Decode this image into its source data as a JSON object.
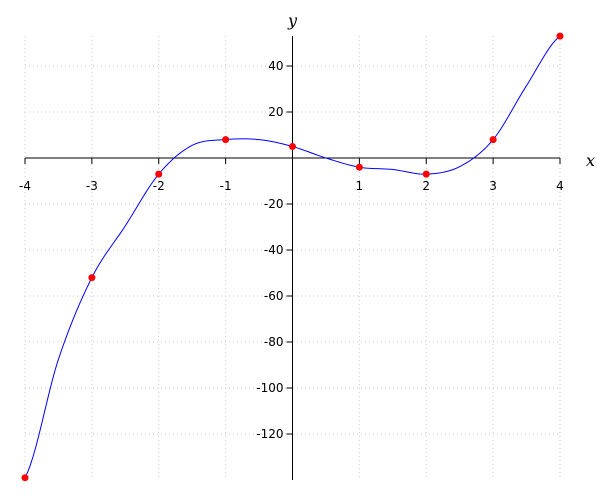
{
  "chart_data": {
    "type": "line",
    "title": "",
    "xlabel": "x",
    "ylabel": "y",
    "xlim": [
      -4,
      4
    ],
    "ylim": [
      -139,
      53
    ],
    "grid": true,
    "x_ticks": [
      -4,
      -3,
      -2,
      -1,
      1,
      2,
      3,
      4
    ],
    "x_tick_labels": [
      "-4",
      "-3",
      "-2",
      "-1",
      "1",
      "2",
      "3",
      "4"
    ],
    "y_ticks": [
      40,
      20,
      -20,
      -40,
      -60,
      -80,
      -100,
      -120
    ],
    "y_tick_labels": [
      "40",
      "20",
      "-20",
      "-40",
      "-60",
      "-80",
      "-100",
      "-120"
    ],
    "curve": {
      "color": "#0000ff",
      "x": [
        -4,
        -3.5,
        -3,
        -2.5,
        -2,
        -1.5,
        -1,
        -0.5,
        0,
        0.5,
        1,
        1.5,
        2,
        2.5,
        3,
        3.5,
        4
      ],
      "y": [
        -139,
        -87.5,
        -52,
        -29.5,
        -7,
        5.5,
        8,
        8,
        5,
        0,
        -4,
        -5,
        -7,
        -3.75,
        8,
        31.5,
        53
      ]
    },
    "points": {
      "color": "#ff0000",
      "x": [
        -4,
        -3,
        -2,
        -1,
        0,
        1,
        2,
        3,
        4
      ],
      "y": [
        -139,
        -52,
        -7,
        8,
        5,
        -4,
        -7,
        8,
        53
      ]
    }
  }
}
